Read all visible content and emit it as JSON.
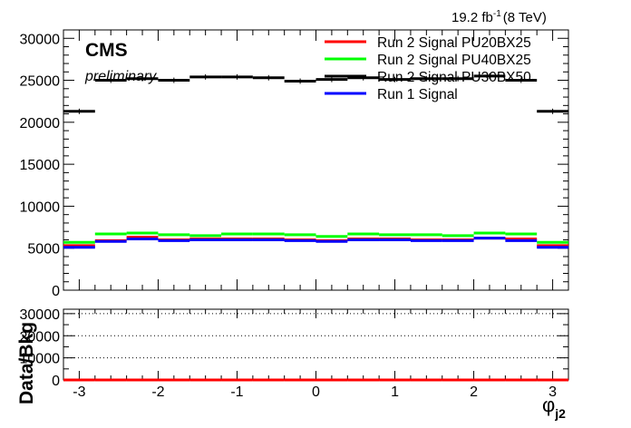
{
  "header": {
    "lumi_value": "19.2 fb",
    "lumi_exp": "-1",
    "lumi_energy": "(8 TeV)"
  },
  "labels": {
    "experiment": "CMS",
    "status": "preliminary"
  },
  "colors": {
    "pu20bx25": "#ff0000",
    "pu40bx25": "#00ff00",
    "pu30bx50": "#000000",
    "run1": "#0000ff"
  },
  "chart_data": [
    {
      "type": "line",
      "panel": "main",
      "title": "",
      "xlabel": "",
      "ylabel": "",
      "xlim": [
        -3.2,
        3.2
      ],
      "ylim": [
        0,
        31000
      ],
      "x_ticks": [
        -3,
        -2,
        -1,
        0,
        1,
        2,
        3
      ],
      "y_ticks": [
        0,
        5000,
        10000,
        15000,
        20000,
        25000,
        30000
      ],
      "x_tick_labels": [
        "-3",
        "-2",
        "-1",
        "0",
        "1",
        "2",
        "3"
      ],
      "y_tick_labels": [
        "0",
        "5000",
        "10000",
        "15000",
        "20000",
        "25000",
        "30000"
      ],
      "bin_edges": [
        -3.2,
        -2.8,
        -2.4,
        -2.0,
        -1.6,
        -1.2,
        -0.8,
        -0.4,
        0.0,
        0.4,
        0.8,
        1.2,
        1.6,
        2.0,
        2.4,
        2.8,
        3.2
      ],
      "legend_position": "top-right",
      "series": [
        {
          "name": "Run 2 Signal PU20BX25",
          "color": "#ff0000",
          "values": [
            5300,
            5900,
            6300,
            6000,
            6100,
            6100,
            6100,
            6000,
            5900,
            6100,
            6100,
            6000,
            6000,
            6200,
            6100,
            5300
          ]
        },
        {
          "name": "Run 2 Signal PU40BX25",
          "color": "#00ff00",
          "values": [
            5700,
            6700,
            6800,
            6600,
            6500,
            6700,
            6700,
            6600,
            6400,
            6700,
            6600,
            6600,
            6500,
            6800,
            6700,
            5700
          ]
        },
        {
          "name": "Run 2 Signal PU30BX50",
          "color": "#000000",
          "values": [
            21300,
            25000,
            25200,
            25000,
            25400,
            25400,
            25300,
            24900,
            25100,
            25300,
            25100,
            25200,
            25200,
            25500,
            25000,
            21300
          ]
        },
        {
          "name": "Run 1 Signal",
          "color": "#0000ff",
          "values": [
            5100,
            5800,
            6100,
            5900,
            6000,
            6000,
            6000,
            5900,
            5800,
            6000,
            6000,
            5900,
            5900,
            6200,
            5900,
            5100
          ]
        }
      ]
    },
    {
      "type": "line",
      "panel": "ratio",
      "title": "",
      "xlabel": "φ",
      "xlabel_sub": "j2",
      "ylabel": "Data/Bkg",
      "xlim": [
        -3.2,
        3.2
      ],
      "ylim": [
        0,
        32000
      ],
      "x_ticks": [
        -3,
        -2,
        -1,
        0,
        1,
        2,
        3
      ],
      "y_ticks": [
        0,
        10000,
        20000,
        30000
      ],
      "x_tick_labels": [
        "-3",
        "-2",
        "-1",
        "0",
        "1",
        "2",
        "3"
      ],
      "y_tick_labels": [
        "0",
        "10000",
        "20000",
        "30000"
      ],
      "grid": "horizontal-dotted",
      "series": [
        {
          "name": "",
          "color": "#ff0000",
          "values": [
            0,
            0,
            0,
            0,
            0,
            0,
            0,
            0,
            0,
            0,
            0,
            0,
            0,
            0,
            0,
            0
          ]
        }
      ]
    }
  ]
}
